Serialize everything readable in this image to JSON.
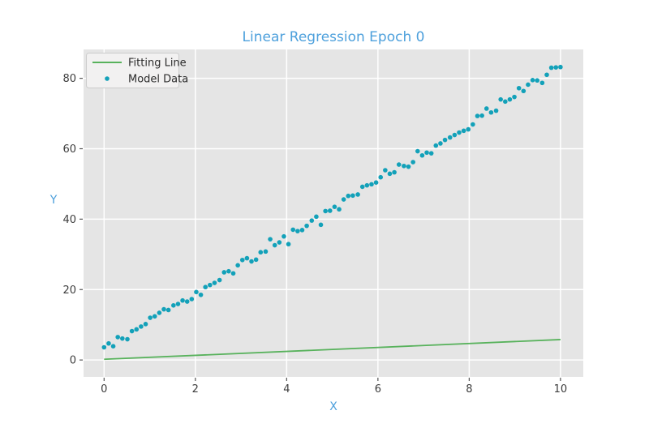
{
  "figure": {
    "background": "#ffffff",
    "accent_color": "#4da0dc",
    "tick_color": "#3d3d3d",
    "text_color": "#2b2b2b",
    "tick_mark_color": "#555555"
  },
  "chart_data": {
    "type": "scatter",
    "title": "Linear Regression Epoch 0",
    "xlabel": "X",
    "ylabel": "Y",
    "xlim": [
      -0.45,
      10.5
    ],
    "ylim": [
      -4.8,
      88.2
    ],
    "xticks": [
      0,
      2,
      4,
      6,
      8,
      10
    ],
    "yticks": [
      0,
      20,
      40,
      60,
      80
    ],
    "grid": true,
    "plot_bg": "#e5e5e5",
    "grid_color": "#ffffff",
    "legend_position": "upper-left",
    "legend_bg": "#f2f1f1",
    "legend_border": "#cccccc",
    "series": [
      {
        "name": "Fitting Line",
        "kind": "line",
        "color": "#58b25c",
        "x": [
          0,
          10
        ],
        "y": [
          0.2,
          5.8
        ]
      },
      {
        "name": "Model Data",
        "kind": "scatter",
        "color": "#13a1b9",
        "marker_diameter": 5.6,
        "points": [
          [
            0.0,
            3.6
          ],
          [
            0.1,
            4.7
          ],
          [
            0.2,
            3.9
          ],
          [
            0.3,
            6.5
          ],
          [
            0.4,
            6.1
          ],
          [
            0.51,
            5.9
          ],
          [
            0.61,
            8.2
          ],
          [
            0.71,
            8.7
          ],
          [
            0.81,
            9.5
          ],
          [
            0.91,
            10.2
          ],
          [
            1.01,
            12.0
          ],
          [
            1.11,
            12.4
          ],
          [
            1.21,
            13.4
          ],
          [
            1.31,
            14.4
          ],
          [
            1.41,
            14.2
          ],
          [
            1.52,
            15.5
          ],
          [
            1.62,
            15.9
          ],
          [
            1.72,
            16.9
          ],
          [
            1.82,
            16.6
          ],
          [
            1.92,
            17.3
          ],
          [
            2.02,
            19.3
          ],
          [
            2.12,
            18.5
          ],
          [
            2.22,
            20.7
          ],
          [
            2.32,
            21.3
          ],
          [
            2.42,
            21.9
          ],
          [
            2.53,
            22.7
          ],
          [
            2.63,
            24.9
          ],
          [
            2.73,
            25.2
          ],
          [
            2.83,
            24.6
          ],
          [
            2.93,
            26.9
          ],
          [
            3.03,
            28.4
          ],
          [
            3.13,
            28.9
          ],
          [
            3.23,
            28.0
          ],
          [
            3.33,
            28.5
          ],
          [
            3.43,
            30.6
          ],
          [
            3.54,
            30.8
          ],
          [
            3.64,
            34.3
          ],
          [
            3.74,
            32.6
          ],
          [
            3.84,
            33.4
          ],
          [
            3.94,
            35.1
          ],
          [
            4.04,
            32.9
          ],
          [
            4.14,
            37.0
          ],
          [
            4.24,
            36.6
          ],
          [
            4.34,
            36.9
          ],
          [
            4.44,
            38.1
          ],
          [
            4.55,
            39.6
          ],
          [
            4.65,
            40.7
          ],
          [
            4.75,
            38.4
          ],
          [
            4.85,
            42.3
          ],
          [
            4.95,
            42.4
          ],
          [
            5.05,
            43.5
          ],
          [
            5.15,
            42.8
          ],
          [
            5.25,
            45.6
          ],
          [
            5.35,
            46.6
          ],
          [
            5.45,
            46.7
          ],
          [
            5.56,
            47.0
          ],
          [
            5.66,
            49.2
          ],
          [
            5.76,
            49.6
          ],
          [
            5.86,
            49.9
          ],
          [
            5.96,
            50.4
          ],
          [
            6.06,
            51.9
          ],
          [
            6.16,
            53.9
          ],
          [
            6.26,
            52.9
          ],
          [
            6.36,
            53.3
          ],
          [
            6.46,
            55.5
          ],
          [
            6.57,
            55.1
          ],
          [
            6.67,
            54.9
          ],
          [
            6.77,
            56.2
          ],
          [
            6.87,
            59.3
          ],
          [
            6.97,
            58.1
          ],
          [
            7.07,
            58.9
          ],
          [
            7.17,
            58.7
          ],
          [
            7.27,
            60.9
          ],
          [
            7.37,
            61.5
          ],
          [
            7.47,
            62.5
          ],
          [
            7.58,
            63.2
          ],
          [
            7.68,
            63.9
          ],
          [
            7.78,
            64.6
          ],
          [
            7.88,
            65.1
          ],
          [
            7.98,
            65.5
          ],
          [
            8.08,
            66.9
          ],
          [
            8.18,
            69.3
          ],
          [
            8.28,
            69.4
          ],
          [
            8.38,
            71.4
          ],
          [
            8.48,
            70.3
          ],
          [
            8.59,
            70.8
          ],
          [
            8.69,
            74.0
          ],
          [
            8.79,
            73.4
          ],
          [
            8.89,
            74.0
          ],
          [
            8.99,
            74.7
          ],
          [
            9.09,
            77.2
          ],
          [
            9.19,
            76.4
          ],
          [
            9.29,
            78.2
          ],
          [
            9.39,
            79.5
          ],
          [
            9.49,
            79.4
          ],
          [
            9.6,
            78.7
          ],
          [
            9.7,
            81.0
          ],
          [
            9.8,
            83.0
          ],
          [
            9.9,
            83.1
          ],
          [
            10.0,
            83.2
          ]
        ]
      }
    ]
  }
}
